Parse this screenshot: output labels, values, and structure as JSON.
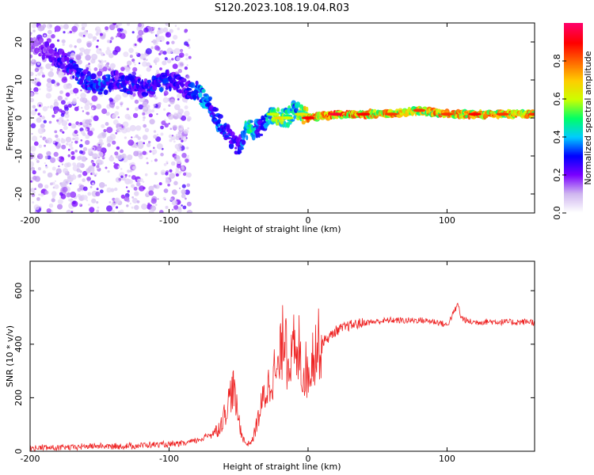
{
  "title": "S120.2023.108.19.04.R03",
  "chart_data": [
    {
      "type": "heatmap",
      "xlabel": "Height of straight line (km)",
      "ylabel": "Frequency (Hz)",
      "xlim": [
        -200,
        163
      ],
      "ylim": [
        -25,
        25
      ],
      "xticks": [
        "-200",
        "-100",
        "0",
        "100"
      ],
      "xtick_values": [
        -200,
        -100,
        0,
        100
      ],
      "yticks": [
        "20",
        "10",
        "0",
        "-10",
        "-20"
      ],
      "ytick_values": [
        20,
        10,
        0,
        -10,
        -20
      ],
      "colorbar": {
        "label": "Normalized spectral amplitude",
        "range": [
          0,
          1
        ],
        "ticks": [
          "0.0",
          "0.2",
          "0.4",
          "0.6",
          "0.8"
        ],
        "tick_values": [
          0,
          0.2,
          0.4,
          0.6,
          0.8
        ],
        "colormap": [
          "#ffffff",
          "#cfb6f0",
          "#7a00ff",
          "#0000ff",
          "#00ccff",
          "#00ff66",
          "#ccff00",
          "#ffcc00",
          "#ff6600",
          "#ff0000",
          "#ff0066"
        ]
      },
      "ridge": {
        "x": [
          -200,
          -180,
          -170,
          -160,
          -150,
          -140,
          -130,
          -120,
          -110,
          -100,
          -90,
          -80,
          -75,
          -70,
          -65,
          -60,
          -55,
          -50,
          -45,
          -40,
          -35,
          -30,
          -25,
          -20,
          -15,
          -10,
          -5,
          0,
          20,
          40,
          60,
          80,
          100,
          120,
          140,
          163
        ],
        "frequency": [
          20,
          16,
          13,
          10,
          8,
          10,
          9,
          8,
          9,
          10,
          8,
          7,
          5,
          3,
          -1,
          -3,
          -6,
          -8,
          -3,
          -3,
          -3,
          -1,
          1,
          0,
          0,
          2,
          1,
          0,
          1,
          1,
          1,
          2,
          1,
          1,
          1,
          1
        ],
        "amplitude": [
          0.15,
          0.3,
          0.35,
          0.35,
          0.4,
          0.3,
          0.35,
          0.3,
          0.35,
          0.35,
          0.3,
          0.4,
          0.5,
          0.35,
          0.4,
          0.35,
          0.35,
          0.3,
          0.5,
          0.55,
          0.35,
          0.45,
          0.6,
          0.7,
          0.6,
          0.5,
          0.65,
          0.9,
          0.95,
          0.9,
          0.85,
          0.85,
          0.85,
          0.9,
          0.85,
          0.85
        ]
      }
    },
    {
      "type": "line",
      "xlabel": "Height of straight line (km)",
      "ylabel": "SNR (10 * v/v)",
      "xlim": [
        -200,
        163
      ],
      "ylim": [
        0,
        710
      ],
      "xticks": [
        "-200",
        "-100",
        "0",
        "100"
      ],
      "xtick_values": [
        -200,
        -100,
        0,
        100
      ],
      "yticks": [
        "0",
        "200",
        "400",
        "600"
      ],
      "ytick_values": [
        0,
        200,
        400,
        600
      ],
      "color": "#ee2222",
      "series": [
        {
          "x": [
            -200,
            -190,
            -180,
            -170,
            -160,
            -150,
            -140,
            -130,
            -120,
            -110,
            -100,
            -90,
            -80,
            -75,
            -70,
            -65,
            -62,
            -60,
            -58,
            -56,
            -54,
            -52,
            -50,
            -48,
            -46,
            -44,
            -40,
            -36,
            -32,
            -28,
            -25,
            -22,
            -20,
            -18,
            -17,
            -16,
            -15,
            -14,
            -12,
            -10,
            -8,
            -6,
            -4,
            -2,
            0,
            2,
            5,
            8,
            12,
            16,
            20,
            25,
            30,
            40,
            50,
            60,
            70,
            80,
            90,
            95,
            100,
            105,
            108,
            110,
            115,
            120,
            130,
            140,
            150,
            160,
            163
          ],
          "y": [
            10,
            14,
            12,
            15,
            18,
            20,
            17,
            19,
            22,
            25,
            24,
            28,
            40,
            50,
            65,
            80,
            110,
            140,
            170,
            210,
            240,
            180,
            120,
            70,
            40,
            25,
            40,
            120,
            200,
            250,
            300,
            280,
            350,
            420,
            460,
            540,
            300,
            380,
            330,
            390,
            300,
            420,
            260,
            320,
            270,
            340,
            380,
            400,
            415,
            430,
            450,
            460,
            470,
            480,
            485,
            490,
            488,
            490,
            485,
            480,
            470,
            520,
            550,
            500,
            485,
            482,
            485,
            483,
            482,
            485,
            480
          ]
        }
      ]
    }
  ]
}
